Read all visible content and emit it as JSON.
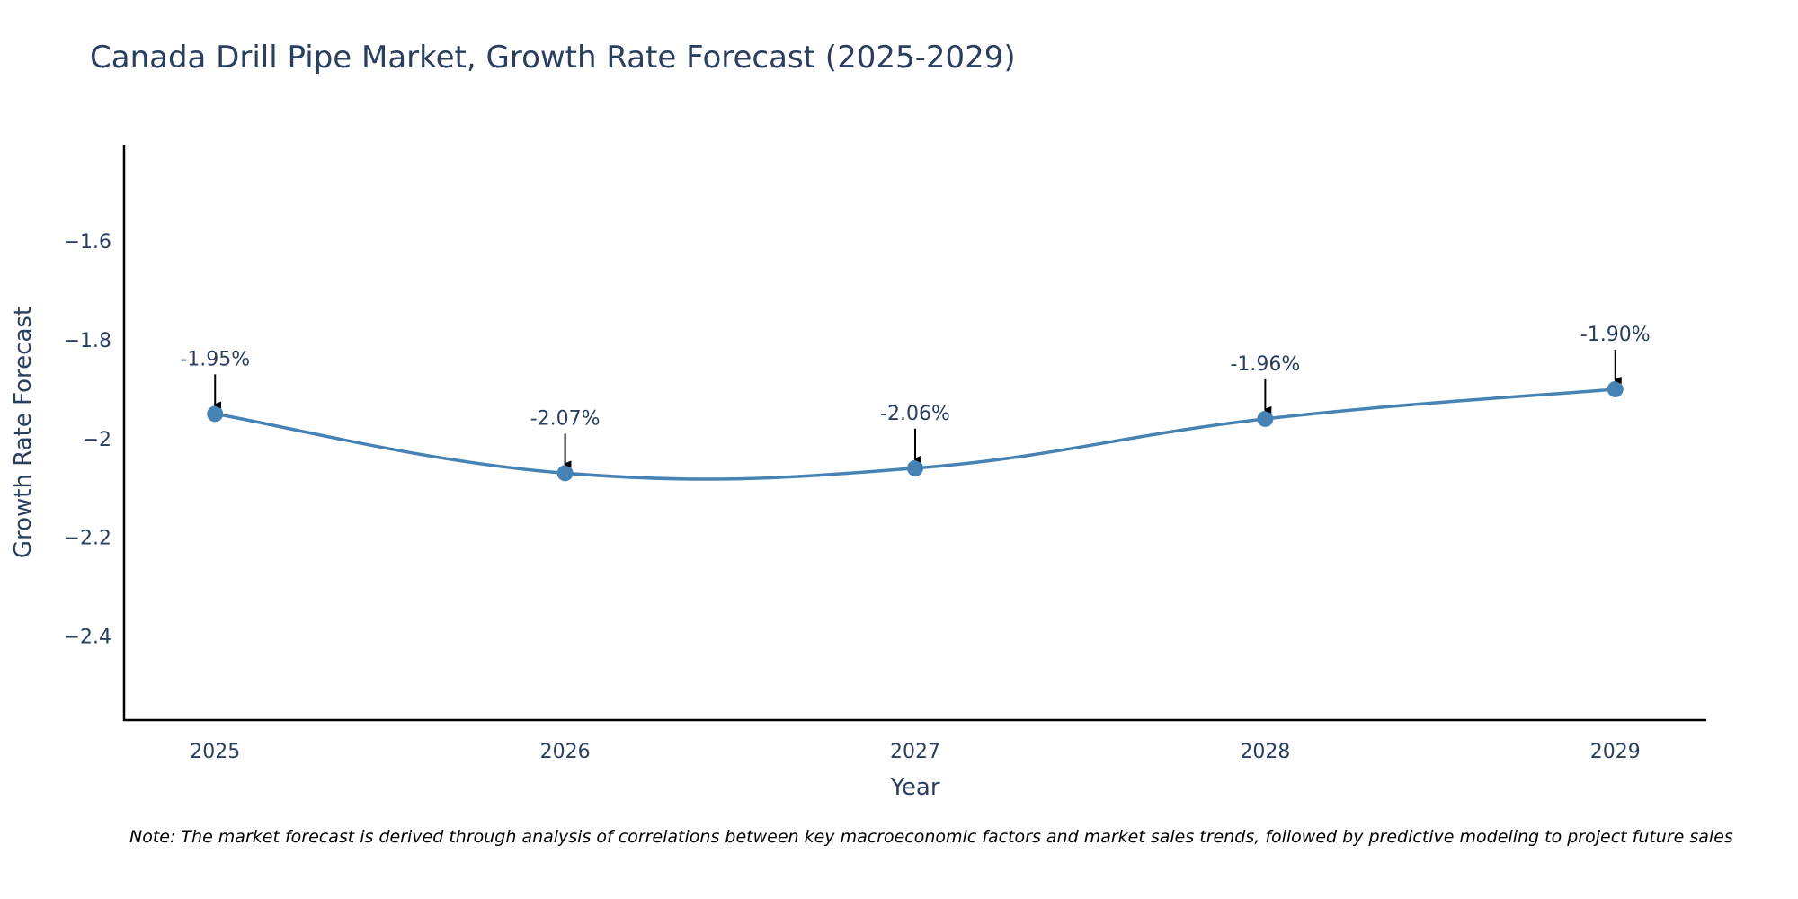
{
  "chart_data": {
    "type": "line",
    "title": "Canada Drill Pipe Market, Growth Rate Forecast (2025-2029)",
    "xlabel": "Year",
    "ylabel": "Growth Rate Forecast",
    "x": [
      2025,
      2026,
      2027,
      2028,
      2029
    ],
    "x_tick_labels": [
      "2025",
      "2026",
      "2027",
      "2028",
      "2029"
    ],
    "series": [
      {
        "name": "Growth Rate Forecast",
        "values": [
          -1.95,
          -2.07,
          -2.06,
          -1.96,
          -1.9
        ],
        "color": "#4682b4",
        "line_shape": "spline"
      }
    ],
    "annotations": [
      "-1.95%",
      "-2.07%",
      "-2.06%",
      "-1.96%",
      "-1.90%"
    ],
    "y_ticks": [
      -1.6,
      -1.8,
      -2,
      -2.2,
      -2.4
    ],
    "y_tick_labels": [
      "−1.6",
      "−1.8",
      "−2",
      "−2.2",
      "−2.4"
    ],
    "xlim": [
      2024.74,
      2029.26
    ],
    "ylim": [
      -2.57,
      -1.405
    ],
    "grid": false,
    "note": "Note: The market forecast is derived through analysis of correlations between key macroeconomic factors and market sales trends, followed by predictive modeling to project future sales"
  }
}
